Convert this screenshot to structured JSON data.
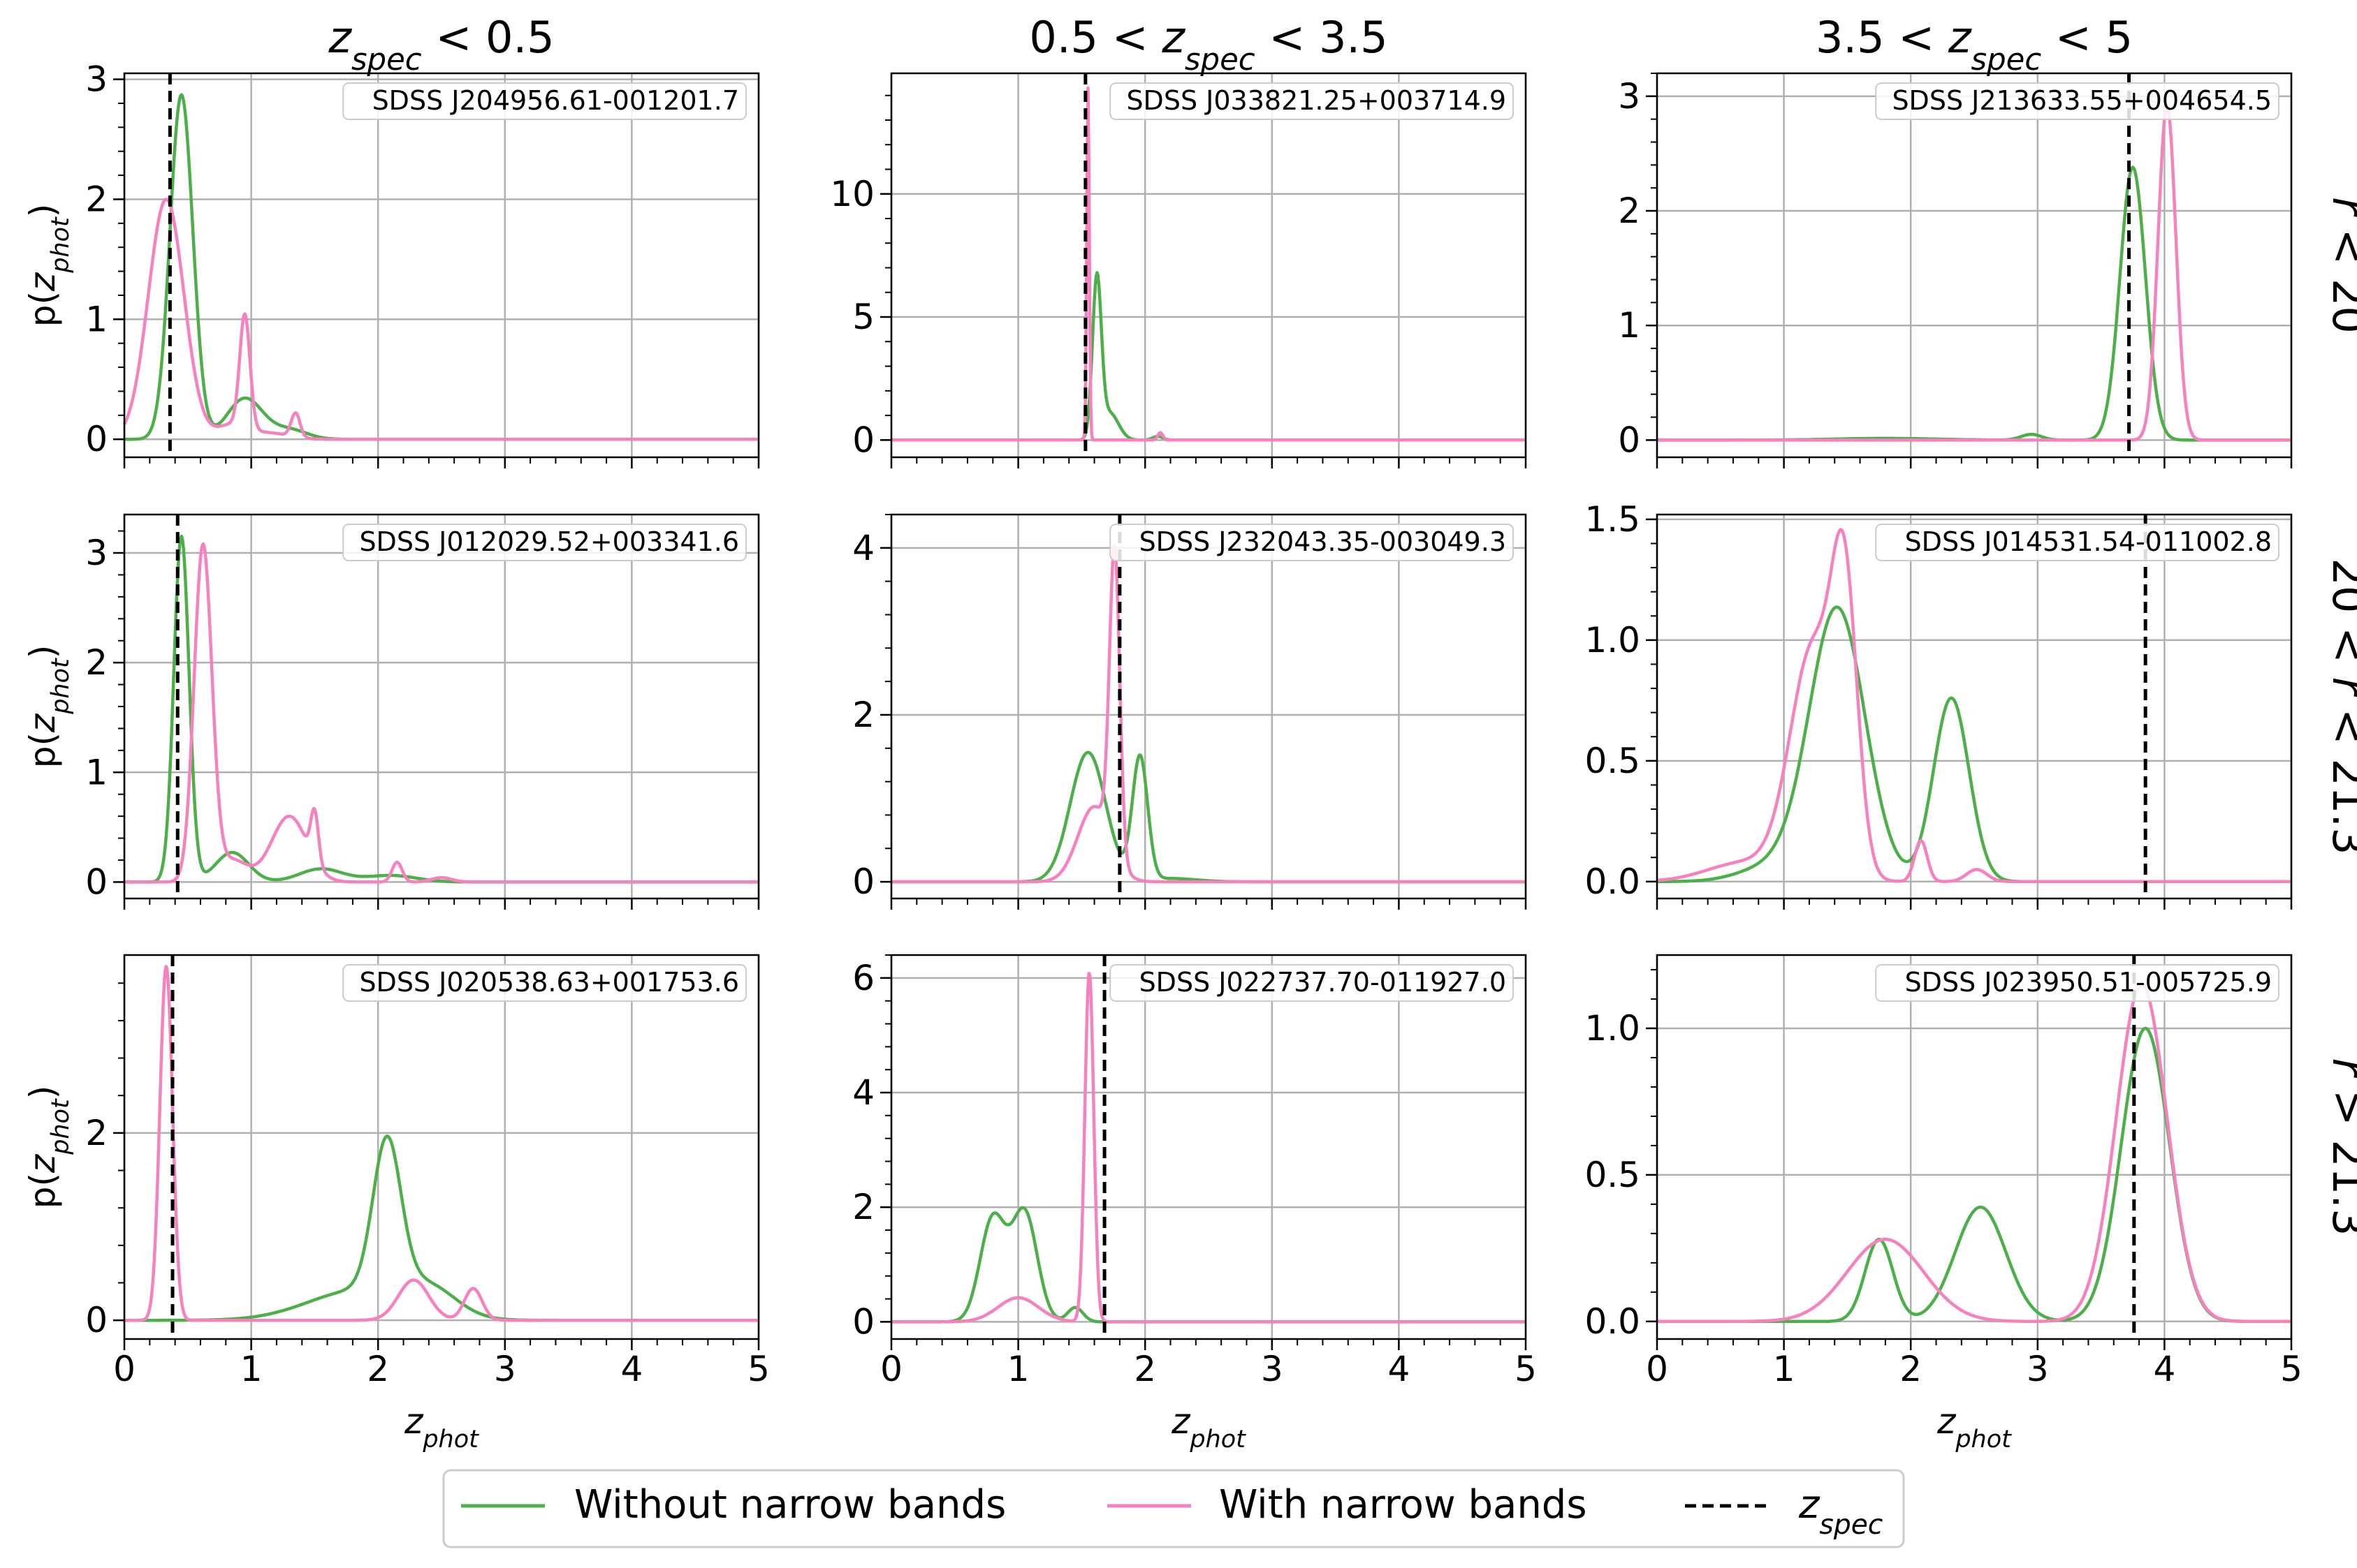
{
  "colors": {
    "without": "#4daf4a",
    "with": "#f781bf",
    "zspec": "#000000",
    "grid": "#b0b0b0"
  },
  "column_titles": [
    {
      "pre": "",
      "sym": "z",
      "sub": "spec",
      "post": " < 0.5"
    },
    {
      "pre": "0.5 < ",
      "sym": "z",
      "sub": "spec",
      "post": " < 3.5"
    },
    {
      "pre": "3.5 < ",
      "sym": "z",
      "sub": "spec",
      "post": " < 5"
    }
  ],
  "row_titles": [
    "r < 20",
    "20 < r < 21.3",
    "r > 21.3"
  ],
  "ylabel": {
    "pre": "p(",
    "sym": "z",
    "sub": "phot",
    "post": ")"
  },
  "xlabel": {
    "sym": "z",
    "sub": "phot"
  },
  "legend": {
    "without_label": "Without narrow bands",
    "with_label": "With narrow bands",
    "zspec_sym": "z",
    "zspec_sub": "spec",
    "placement": "bottom-center"
  },
  "chart_data": [
    {
      "type": "line",
      "object": "SDSS J204956.61-001201.7",
      "zspec": 0.36,
      "xlim": [
        0,
        5
      ],
      "ylim": [
        -0.15,
        3.05
      ],
      "xticks": [
        0,
        1,
        2,
        3,
        4,
        5
      ],
      "yticks": [
        0,
        1,
        2,
        3
      ],
      "ytick_labels": [
        "0",
        "1",
        "2",
        "3"
      ],
      "grid": true,
      "series": [
        {
          "name": "Without narrow bands",
          "gaussians": [
            [
              0.45,
              0.09,
              2.87
            ],
            [
              0.95,
              0.14,
              0.34
            ],
            [
              1.3,
              0.14,
              0.08
            ]
          ]
        },
        {
          "name": "With narrow bands",
          "gaussians": [
            [
              0.33,
              0.14,
              2.0
            ],
            [
              0.95,
              0.04,
              0.94
            ],
            [
              0.85,
              0.12,
              0.12
            ],
            [
              1.35,
              0.035,
              0.2
            ],
            [
              1.15,
              0.15,
              0.05
            ]
          ]
        }
      ]
    },
    {
      "type": "line",
      "object": "SDSS J033821.25+003714.9",
      "zspec": 1.53,
      "xlim": [
        0,
        5
      ],
      "ylim": [
        -0.7,
        14.9
      ],
      "xticks": [
        0,
        1,
        2,
        3,
        4,
        5
      ],
      "yticks": [
        0,
        5,
        10
      ],
      "ytick_labels": [
        "0",
        "5",
        "10"
      ],
      "grid": true,
      "series": [
        {
          "name": "Without narrow bands",
          "gaussians": [
            [
              1.62,
              0.035,
              6.4
            ],
            [
              1.72,
              0.07,
              1.1
            ],
            [
              2.1,
              0.04,
              0.15
            ]
          ]
        },
        {
          "name": "With narrow bands",
          "gaussians": [
            [
              1.55,
              0.01,
              14.3
            ],
            [
              2.12,
              0.02,
              0.3
            ]
          ]
        }
      ]
    },
    {
      "type": "line",
      "object": "SDSS J213633.55+004654.5",
      "zspec": 3.72,
      "xlim": [
        0,
        5
      ],
      "ylim": [
        -0.15,
        3.2
      ],
      "xticks": [
        0,
        1,
        2,
        3,
        4,
        5
      ],
      "yticks": [
        0,
        1,
        2,
        3
      ],
      "ytick_labels": [
        "0",
        "1",
        "2",
        "3"
      ],
      "grid": true,
      "series": [
        {
          "name": "Without narrow bands",
          "gaussians": [
            [
              3.75,
              0.1,
              2.38
            ],
            [
              2.95,
              0.08,
              0.05
            ],
            [
              1.8,
              0.4,
              0.015
            ]
          ]
        },
        {
          "name": "With narrow bands",
          "gaussians": [
            [
              4.02,
              0.07,
              2.92
            ]
          ]
        }
      ]
    },
    {
      "type": "line",
      "object": "SDSS J012029.52+003341.6",
      "zspec": 0.42,
      "xlim": [
        0,
        5
      ],
      "ylim": [
        -0.15,
        3.35
      ],
      "xticks": [
        0,
        1,
        2,
        3,
        4,
        5
      ],
      "yticks": [
        0,
        1,
        2,
        3
      ],
      "ytick_labels": [
        "0",
        "1",
        "2",
        "3"
      ],
      "grid": true,
      "series": [
        {
          "name": "Without narrow bands",
          "gaussians": [
            [
              0.45,
              0.06,
              3.15
            ],
            [
              0.85,
              0.13,
              0.27
            ],
            [
              1.55,
              0.17,
              0.12
            ],
            [
              2.1,
              0.2,
              0.06
            ]
          ]
        },
        {
          "name": "With narrow bands",
          "gaussians": [
            [
              0.62,
              0.07,
              3.05
            ],
            [
              0.85,
              0.12,
              0.2
            ],
            [
              1.3,
              0.14,
              0.6
            ],
            [
              1.5,
              0.03,
              0.45
            ],
            [
              2.15,
              0.04,
              0.18
            ],
            [
              2.5,
              0.08,
              0.04
            ]
          ]
        }
      ]
    },
    {
      "type": "line",
      "object": "SDSS J232043.35-003049.3",
      "zspec": 1.8,
      "xlim": [
        0,
        5
      ],
      "ylim": [
        -0.2,
        4.4
      ],
      "xticks": [
        0,
        1,
        2,
        3,
        4,
        5
      ],
      "yticks": [
        0,
        2,
        4
      ],
      "ytick_labels": [
        "0",
        "2",
        "4"
      ],
      "grid": true,
      "series": [
        {
          "name": "Without narrow bands",
          "gaussians": [
            [
              1.55,
              0.14,
              1.55
            ],
            [
              1.96,
              0.06,
              1.48
            ],
            [
              2.2,
              0.2,
              0.04
            ]
          ]
        },
        {
          "name": "With narrow bands",
          "gaussians": [
            [
              1.76,
              0.04,
              3.6
            ],
            [
              1.6,
              0.13,
              0.9
            ]
          ]
        }
      ]
    },
    {
      "type": "line",
      "object": "SDSS J014531.54-011002.8",
      "zspec": 3.85,
      "xlim": [
        0,
        5
      ],
      "ylim": [
        -0.07,
        1.52
      ],
      "xticks": [
        0,
        1,
        2,
        3,
        4,
        5
      ],
      "yticks": [
        0,
        0.5,
        1,
        1.5
      ],
      "ytick_labels": [
        "0.0",
        "0.5",
        "1.0",
        "1.5"
      ],
      "grid": true,
      "series": [
        {
          "name": "Without narrow bands",
          "gaussians": [
            [
              1.42,
              0.22,
              1.13
            ],
            [
              2.32,
              0.14,
              0.76
            ],
            [
              0.9,
              0.25,
              0.06
            ]
          ]
        },
        {
          "name": "With narrow bands",
          "gaussians": [
            [
              1.48,
              0.1,
              1.05
            ],
            [
              1.23,
              0.18,
              0.95
            ],
            [
              2.08,
              0.05,
              0.17
            ],
            [
              2.52,
              0.08,
              0.05
            ],
            [
              0.7,
              0.3,
              0.08
            ]
          ]
        }
      ]
    },
    {
      "type": "line",
      "object": "SDSS J020538.63+001753.6",
      "zspec": 0.38,
      "xlim": [
        0,
        5
      ],
      "ylim": [
        -0.2,
        3.9
      ],
      "xticks": [
        0,
        1,
        2,
        3,
        4,
        5
      ],
      "yticks": [
        0,
        2
      ],
      "ytick_labels": [
        "0",
        "2"
      ],
      "grid": true,
      "series": [
        {
          "name": "Without narrow bands",
          "gaussians": [
            [
              2.07,
              0.11,
              1.6
            ],
            [
              1.85,
              0.4,
              0.32
            ],
            [
              2.4,
              0.22,
              0.28
            ]
          ]
        },
        {
          "name": "With narrow bands",
          "gaussians": [
            [
              0.33,
              0.05,
              3.78
            ],
            [
              2.28,
              0.12,
              0.43
            ],
            [
              2.75,
              0.07,
              0.34
            ]
          ]
        }
      ]
    },
    {
      "type": "line",
      "object": "SDSS J022737.70-011927.0",
      "zspec": 1.68,
      "xlim": [
        0,
        5
      ],
      "ylim": [
        -0.3,
        6.4
      ],
      "xticks": [
        0,
        1,
        2,
        3,
        4,
        5
      ],
      "yticks": [
        0,
        2,
        4,
        6
      ],
      "ytick_labels": [
        "0",
        "2",
        "4",
        "6"
      ],
      "grid": true,
      "series": [
        {
          "name": "Without narrow bands",
          "gaussians": [
            [
              0.8,
              0.1,
              1.8
            ],
            [
              1.05,
              0.1,
              1.9
            ],
            [
              1.45,
              0.06,
              0.25
            ]
          ]
        },
        {
          "name": "With narrow bands",
          "gaussians": [
            [
              1.56,
              0.035,
              6.1
            ],
            [
              1.0,
              0.16,
              0.42
            ]
          ]
        }
      ]
    },
    {
      "type": "line",
      "object": "SDSS J023950.51-005725.9",
      "zspec": 3.76,
      "xlim": [
        0,
        5
      ],
      "ylim": [
        -0.06,
        1.25
      ],
      "xticks": [
        0,
        1,
        2,
        3,
        4,
        5
      ],
      "yticks": [
        0,
        0.5,
        1
      ],
      "ytick_labels": [
        "0.0",
        "0.5",
        "1.0"
      ],
      "grid": true,
      "series": [
        {
          "name": "Without narrow bands",
          "gaussians": [
            [
              3.85,
              0.19,
              1.0
            ],
            [
              1.75,
              0.11,
              0.28
            ],
            [
              2.55,
              0.2,
              0.39
            ]
          ]
        },
        {
          "name": "With narrow bands",
          "gaussians": [
            [
              3.82,
              0.2,
              1.15
            ],
            [
              1.8,
              0.3,
              0.28
            ]
          ]
        }
      ]
    }
  ]
}
